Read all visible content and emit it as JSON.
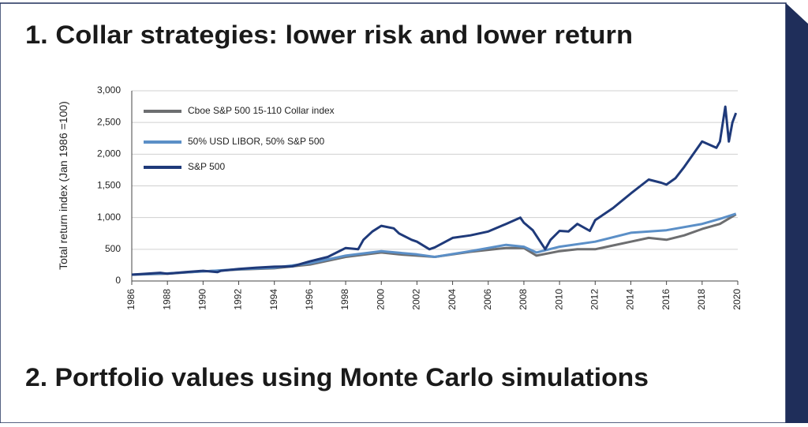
{
  "chart_data": {
    "type": "line",
    "title": "1. Collar strategies: lower risk and lower return",
    "y_label": "Total return index (Jan 1986 =100)",
    "xlim": [
      1986,
      2020
    ],
    "xticks": [
      1986,
      1988,
      1990,
      1992,
      1994,
      1996,
      1998,
      2000,
      2002,
      2004,
      2006,
      2008,
      2010,
      2012,
      2014,
      2016,
      2018,
      2020
    ],
    "ylim": [
      0,
      3000
    ],
    "yticks": [
      0,
      500,
      {
        "value": 1000,
        "label": "1,000"
      },
      {
        "value": 1500,
        "label": "1,500"
      },
      {
        "value": 2000,
        "label": "2,000"
      },
      {
        "value": 2500,
        "label": "2,500"
      },
      {
        "value": 3000,
        "label": "3,000"
      }
    ],
    "grid": true,
    "legend": "upper left",
    "series": [
      {
        "name": "Cboe S&P 500 15-110 Collar index",
        "color": "#6d6e70",
        "x": [
          1986,
          1988,
          1990,
          1992,
          1994,
          1996,
          1998,
          2000,
          2001,
          2002,
          2003,
          2005,
          2007,
          2008,
          2008.7,
          2010,
          2011,
          2012,
          2013,
          2014,
          2015,
          2016,
          2017,
          2018,
          2019,
          2019.9
        ],
        "values": [
          100,
          115,
          150,
          180,
          200,
          260,
          380,
          450,
          420,
          400,
          380,
          460,
          520,
          520,
          400,
          470,
          500,
          500,
          560,
          620,
          680,
          650,
          720,
          820,
          900,
          1050
        ]
      },
      {
        "name": "50% USD LIBOR, 50% S&P 500",
        "color": "#5b8fc7",
        "x": [
          1986,
          1988,
          1990,
          1992,
          1994,
          1996,
          1998,
          2000,
          2002,
          2003,
          2005,
          2007,
          2008,
          2008.7,
          2010,
          2012,
          2014,
          2016,
          2018,
          2019,
          2019.9
        ],
        "values": [
          100,
          120,
          150,
          185,
          210,
          280,
          400,
          470,
          420,
          380,
          470,
          570,
          540,
          450,
          540,
          620,
          760,
          800,
          900,
          980,
          1060
        ]
      },
      {
        "name": "S&P 500",
        "color": "#1f3a7a",
        "x": [
          1986,
          1987.6,
          1988,
          1989,
          1990,
          1990.8,
          1991,
          1992,
          1993,
          1994,
          1995,
          1996,
          1997,
          1998,
          1998.7,
          1999,
          1999.5,
          2000,
          2000.7,
          2001,
          2001.7,
          2002,
          2002.7,
          2003,
          2004,
          2005,
          2006,
          2007,
          2007.8,
          2008,
          2008.5,
          2009.2,
          2009.5,
          2010,
          2010.5,
          2011,
          2011.7,
          2012,
          2013,
          2014,
          2015,
          2015.7,
          2016,
          2016.5,
          2017,
          2018,
          2018.8,
          2019,
          2019.3,
          2019.5,
          2019.7,
          2019.9
        ],
        "values": [
          100,
          130,
          115,
          140,
          160,
          140,
          160,
          190,
          210,
          225,
          230,
          310,
          380,
          520,
          500,
          650,
          780,
          870,
          830,
          750,
          650,
          620,
          500,
          530,
          680,
          720,
          780,
          900,
          1000,
          920,
          800,
          500,
          650,
          790,
          780,
          900,
          790,
          960,
          1150,
          1380,
          1600,
          1550,
          1520,
          1620,
          1800,
          2200,
          2100,
          2200,
          2750,
          2200,
          2500,
          2650
        ]
      }
    ]
  },
  "next_heading": "2. Portfolio values using Monte Carlo simulations"
}
